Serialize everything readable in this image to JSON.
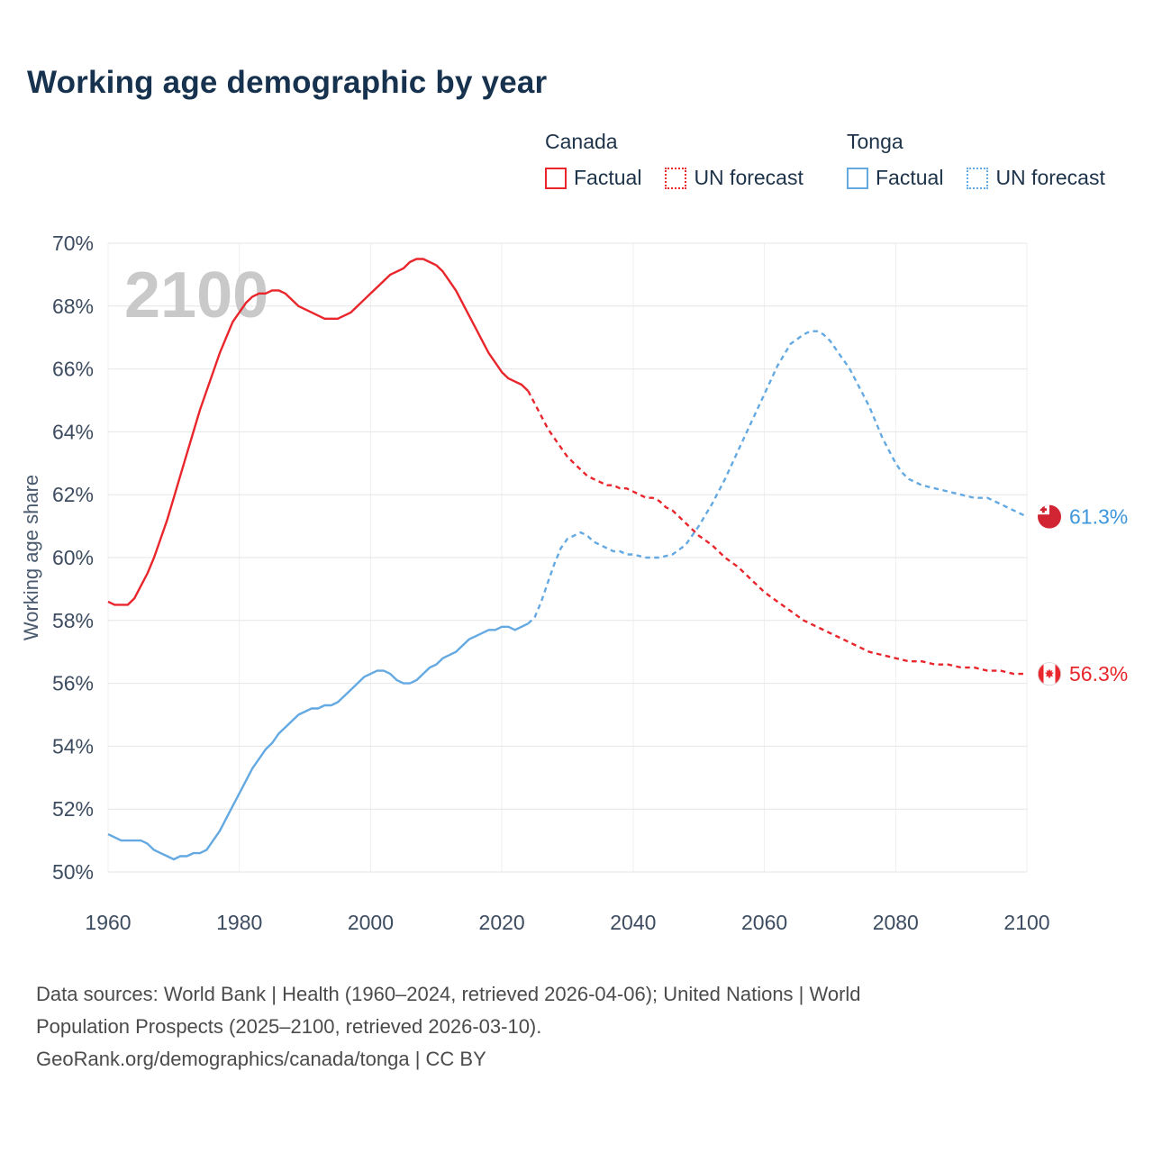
{
  "title": "Working age demographic by year",
  "watermark": "2100",
  "colors": {
    "canada": "#E8262C",
    "tonga": "#64A9E1",
    "grid": "#E6E6E6",
    "title_text": "#17324E",
    "watermark_text": "#C9C9C9"
  },
  "legend": {
    "groups": [
      {
        "country": "Canada",
        "color": "#E8262C",
        "items": [
          {
            "label": "Factual",
            "style": "solid"
          },
          {
            "label": "UN forecast",
            "style": "dashed"
          }
        ]
      },
      {
        "country": "Tonga",
        "color": "#64A9E1",
        "items": [
          {
            "label": "Factual",
            "style": "solid"
          },
          {
            "label": "UN forecast",
            "style": "dashed"
          }
        ]
      }
    ]
  },
  "end_labels": [
    {
      "country": "Tonga",
      "flag": "tonga",
      "value": 61.3,
      "value_label": "61.3%",
      "color": "#3E96DB"
    },
    {
      "country": "Canada",
      "flag": "canada",
      "value": 56.3,
      "value_label": "56.3%",
      "color": "#E8262C"
    }
  ],
  "footer": {
    "line1": "Data sources: World Bank | Health (1960–2024, retrieved 2026-04-06); United Nations | World",
    "line2": "Population Prospects (2025–2100, retrieved 2026-03-10).",
    "line3": "GeoRank.org/demographics/canada/tonga | CC BY"
  },
  "chart_data": {
    "type": "line",
    "title": "Working age demographic by year",
    "xlabel": "",
    "ylabel": "Working age share",
    "xlim": [
      1960,
      2100
    ],
    "ylim": [
      50,
      70
    ],
    "xticks": [
      1960,
      1980,
      2000,
      2020,
      2040,
      2060,
      2080,
      2100
    ],
    "yticks": [
      50,
      52,
      54,
      56,
      58,
      60,
      62,
      64,
      66,
      68,
      70
    ],
    "grid": true,
    "legend_position": "top-right",
    "series": [
      {
        "id": "canada-factual",
        "name": "Canada Factual",
        "color": "#E8262C",
        "style": "solid",
        "points": [
          [
            1960,
            58.6
          ],
          [
            1961,
            58.5
          ],
          [
            1962,
            58.5
          ],
          [
            1963,
            58.5
          ],
          [
            1964,
            58.7
          ],
          [
            1965,
            59.1
          ],
          [
            1966,
            59.5
          ],
          [
            1967,
            60.0
          ],
          [
            1968,
            60.6
          ],
          [
            1969,
            61.2
          ],
          [
            1970,
            61.9
          ],
          [
            1971,
            62.6
          ],
          [
            1972,
            63.3
          ],
          [
            1973,
            64.0
          ],
          [
            1974,
            64.7
          ],
          [
            1975,
            65.3
          ],
          [
            1976,
            65.9
          ],
          [
            1977,
            66.5
          ],
          [
            1978,
            67.0
          ],
          [
            1979,
            67.5
          ],
          [
            1980,
            67.8
          ],
          [
            1981,
            68.1
          ],
          [
            1982,
            68.3
          ],
          [
            1983,
            68.4
          ],
          [
            1984,
            68.4
          ],
          [
            1985,
            68.5
          ],
          [
            1986,
            68.5
          ],
          [
            1987,
            68.4
          ],
          [
            1988,
            68.2
          ],
          [
            1989,
            68.0
          ],
          [
            1990,
            67.9
          ],
          [
            1991,
            67.8
          ],
          [
            1992,
            67.7
          ],
          [
            1993,
            67.6
          ],
          [
            1994,
            67.6
          ],
          [
            1995,
            67.6
          ],
          [
            1996,
            67.7
          ],
          [
            1997,
            67.8
          ],
          [
            1998,
            68.0
          ],
          [
            1999,
            68.2
          ],
          [
            2000,
            68.4
          ],
          [
            2001,
            68.6
          ],
          [
            2002,
            68.8
          ],
          [
            2003,
            69.0
          ],
          [
            2004,
            69.1
          ],
          [
            2005,
            69.2
          ],
          [
            2006,
            69.4
          ],
          [
            2007,
            69.5
          ],
          [
            2008,
            69.5
          ],
          [
            2009,
            69.4
          ],
          [
            2010,
            69.3
          ],
          [
            2011,
            69.1
          ],
          [
            2012,
            68.8
          ],
          [
            2013,
            68.5
          ],
          [
            2014,
            68.1
          ],
          [
            2015,
            67.7
          ],
          [
            2016,
            67.3
          ],
          [
            2017,
            66.9
          ],
          [
            2018,
            66.5
          ],
          [
            2019,
            66.2
          ],
          [
            2020,
            65.9
          ],
          [
            2021,
            65.7
          ],
          [
            2022,
            65.6
          ],
          [
            2023,
            65.5
          ],
          [
            2024,
            65.3
          ]
        ]
      },
      {
        "id": "canada-forecast",
        "name": "Canada UN forecast",
        "color": "#E8262C",
        "style": "dashed",
        "points": [
          [
            2024,
            65.3
          ],
          [
            2025,
            64.9
          ],
          [
            2026,
            64.5
          ],
          [
            2027,
            64.1
          ],
          [
            2028,
            63.8
          ],
          [
            2029,
            63.5
          ],
          [
            2030,
            63.2
          ],
          [
            2031,
            63.0
          ],
          [
            2032,
            62.8
          ],
          [
            2033,
            62.6
          ],
          [
            2034,
            62.5
          ],
          [
            2035,
            62.4
          ],
          [
            2036,
            62.3
          ],
          [
            2037,
            62.3
          ],
          [
            2038,
            62.2
          ],
          [
            2039,
            62.2
          ],
          [
            2040,
            62.1
          ],
          [
            2041,
            62.0
          ],
          [
            2042,
            61.9
          ],
          [
            2043,
            61.9
          ],
          [
            2044,
            61.8
          ],
          [
            2045,
            61.6
          ],
          [
            2046,
            61.5
          ],
          [
            2047,
            61.3
          ],
          [
            2048,
            61.1
          ],
          [
            2049,
            60.9
          ],
          [
            2050,
            60.7
          ],
          [
            2052,
            60.4
          ],
          [
            2054,
            60.0
          ],
          [
            2056,
            59.7
          ],
          [
            2058,
            59.3
          ],
          [
            2060,
            58.9
          ],
          [
            2062,
            58.6
          ],
          [
            2064,
            58.3
          ],
          [
            2066,
            58.0
          ],
          [
            2068,
            57.8
          ],
          [
            2070,
            57.6
          ],
          [
            2072,
            57.4
          ],
          [
            2074,
            57.2
          ],
          [
            2076,
            57.0
          ],
          [
            2078,
            56.9
          ],
          [
            2080,
            56.8
          ],
          [
            2082,
            56.7
          ],
          [
            2084,
            56.7
          ],
          [
            2086,
            56.6
          ],
          [
            2088,
            56.6
          ],
          [
            2090,
            56.5
          ],
          [
            2092,
            56.5
          ],
          [
            2094,
            56.4
          ],
          [
            2096,
            56.4
          ],
          [
            2098,
            56.3
          ],
          [
            2100,
            56.3
          ]
        ]
      },
      {
        "id": "tonga-factual",
        "name": "Tonga Factual",
        "color": "#64A9E1",
        "style": "solid",
        "points": [
          [
            1960,
            51.2
          ],
          [
            1961,
            51.1
          ],
          [
            1962,
            51.0
          ],
          [
            1963,
            51.0
          ],
          [
            1964,
            51.0
          ],
          [
            1965,
            51.0
          ],
          [
            1966,
            50.9
          ],
          [
            1967,
            50.7
          ],
          [
            1968,
            50.6
          ],
          [
            1969,
            50.5
          ],
          [
            1970,
            50.4
          ],
          [
            1971,
            50.5
          ],
          [
            1972,
            50.5
          ],
          [
            1973,
            50.6
          ],
          [
            1974,
            50.6
          ],
          [
            1975,
            50.7
          ],
          [
            1976,
            51.0
          ],
          [
            1977,
            51.3
          ],
          [
            1978,
            51.7
          ],
          [
            1979,
            52.1
          ],
          [
            1980,
            52.5
          ],
          [
            1981,
            52.9
          ],
          [
            1982,
            53.3
          ],
          [
            1983,
            53.6
          ],
          [
            1984,
            53.9
          ],
          [
            1985,
            54.1
          ],
          [
            1986,
            54.4
          ],
          [
            1987,
            54.6
          ],
          [
            1988,
            54.8
          ],
          [
            1989,
            55.0
          ],
          [
            1990,
            55.1
          ],
          [
            1991,
            55.2
          ],
          [
            1992,
            55.2
          ],
          [
            1993,
            55.3
          ],
          [
            1994,
            55.3
          ],
          [
            1995,
            55.4
          ],
          [
            1996,
            55.6
          ],
          [
            1997,
            55.8
          ],
          [
            1998,
            56.0
          ],
          [
            1999,
            56.2
          ],
          [
            2000,
            56.3
          ],
          [
            2001,
            56.4
          ],
          [
            2002,
            56.4
          ],
          [
            2003,
            56.3
          ],
          [
            2004,
            56.1
          ],
          [
            2005,
            56.0
          ],
          [
            2006,
            56.0
          ],
          [
            2007,
            56.1
          ],
          [
            2008,
            56.3
          ],
          [
            2009,
            56.5
          ],
          [
            2010,
            56.6
          ],
          [
            2011,
            56.8
          ],
          [
            2012,
            56.9
          ],
          [
            2013,
            57.0
          ],
          [
            2014,
            57.2
          ],
          [
            2015,
            57.4
          ],
          [
            2016,
            57.5
          ],
          [
            2017,
            57.6
          ],
          [
            2018,
            57.7
          ],
          [
            2019,
            57.7
          ],
          [
            2020,
            57.8
          ],
          [
            2021,
            57.8
          ],
          [
            2022,
            57.7
          ],
          [
            2023,
            57.8
          ],
          [
            2024,
            57.9
          ]
        ]
      },
      {
        "id": "tonga-forecast",
        "name": "Tonga UN forecast",
        "color": "#64A9E1",
        "style": "dashed",
        "points": [
          [
            2024,
            57.9
          ],
          [
            2025,
            58.1
          ],
          [
            2026,
            58.6
          ],
          [
            2027,
            59.2
          ],
          [
            2028,
            59.8
          ],
          [
            2029,
            60.3
          ],
          [
            2030,
            60.6
          ],
          [
            2031,
            60.7
          ],
          [
            2032,
            60.8
          ],
          [
            2033,
            60.7
          ],
          [
            2034,
            60.5
          ],
          [
            2035,
            60.4
          ],
          [
            2036,
            60.3
          ],
          [
            2037,
            60.2
          ],
          [
            2038,
            60.2
          ],
          [
            2039,
            60.1
          ],
          [
            2040,
            60.1
          ],
          [
            2042,
            60.0
          ],
          [
            2044,
            60.0
          ],
          [
            2046,
            60.1
          ],
          [
            2048,
            60.4
          ],
          [
            2050,
            61.0
          ],
          [
            2052,
            61.7
          ],
          [
            2054,
            62.5
          ],
          [
            2056,
            63.4
          ],
          [
            2058,
            64.3
          ],
          [
            2060,
            65.2
          ],
          [
            2062,
            66.1
          ],
          [
            2064,
            66.8
          ],
          [
            2066,
            67.1
          ],
          [
            2067,
            67.2
          ],
          [
            2068,
            67.2
          ],
          [
            2069,
            67.1
          ],
          [
            2070,
            66.9
          ],
          [
            2071,
            66.6
          ],
          [
            2072,
            66.3
          ],
          [
            2073,
            66.0
          ],
          [
            2074,
            65.6
          ],
          [
            2075,
            65.2
          ],
          [
            2076,
            64.8
          ],
          [
            2077,
            64.3
          ],
          [
            2078,
            63.8
          ],
          [
            2079,
            63.4
          ],
          [
            2080,
            63.0
          ],
          [
            2081,
            62.7
          ],
          [
            2082,
            62.5
          ],
          [
            2084,
            62.3
          ],
          [
            2086,
            62.2
          ],
          [
            2088,
            62.1
          ],
          [
            2090,
            62.0
          ],
          [
            2092,
            61.9
          ],
          [
            2094,
            61.9
          ],
          [
            2096,
            61.7
          ],
          [
            2098,
            61.5
          ],
          [
            2100,
            61.3
          ]
        ]
      }
    ]
  }
}
